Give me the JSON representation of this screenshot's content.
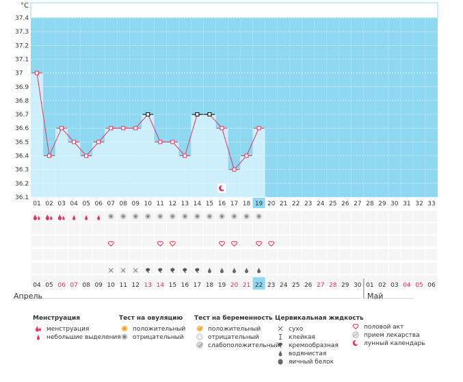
{
  "chart_data": {
    "type": "line",
    "ylabel": "°C",
    "ylim": [
      36.1,
      37.4
    ],
    "yticks": [
      "36.1",
      "36.2",
      "36.3",
      "36.4",
      "36.5",
      "36.6",
      "36.7",
      "36.8",
      "36.9",
      "37",
      "37.1",
      "37.2",
      "37.3",
      "37.4"
    ],
    "cycle_days": [
      "01",
      "02",
      "03",
      "04",
      "05",
      "06",
      "07",
      "08",
      "09",
      "10",
      "11",
      "12",
      "13",
      "14",
      "15",
      "16",
      "17",
      "18",
      "19",
      "20",
      "21",
      "22",
      "23",
      "24",
      "25",
      "26",
      "27",
      "28",
      "29",
      "30",
      "31",
      "32",
      "33"
    ],
    "current_day": "19",
    "temperatures": [
      37.0,
      36.4,
      36.6,
      36.5,
      36.4,
      36.5,
      36.6,
      36.6,
      36.6,
      36.7,
      36.5,
      36.5,
      36.4,
      36.7,
      36.7,
      36.6,
      36.3,
      36.4,
      36.6
    ],
    "square_markers": [
      10,
      14,
      15
    ],
    "moon_day": 16,
    "grid": true,
    "dates": [
      {
        "d": "04",
        "red": false
      },
      {
        "d": "05",
        "red": false
      },
      {
        "d": "06",
        "red": true
      },
      {
        "d": "07",
        "red": true
      },
      {
        "d": "08",
        "red": false
      },
      {
        "d": "09",
        "red": false
      },
      {
        "d": "10",
        "red": false
      },
      {
        "d": "11",
        "red": false
      },
      {
        "d": "12",
        "red": false
      },
      {
        "d": "13",
        "red": true
      },
      {
        "d": "14",
        "red": true
      },
      {
        "d": "15",
        "red": false
      },
      {
        "d": "16",
        "red": false
      },
      {
        "d": "17",
        "red": false
      },
      {
        "d": "18",
        "red": false
      },
      {
        "d": "19",
        "red": false
      },
      {
        "d": "20",
        "red": true
      },
      {
        "d": "21",
        "red": true
      },
      {
        "d": "22",
        "red": false
      },
      {
        "d": "23",
        "red": false
      },
      {
        "d": "24",
        "red": false
      },
      {
        "d": "25",
        "red": false
      },
      {
        "d": "26",
        "red": false
      },
      {
        "d": "27",
        "red": true
      },
      {
        "d": "28",
        "red": true
      },
      {
        "d": "29",
        "red": false
      },
      {
        "d": "30",
        "red": false
      },
      {
        "d": "01",
        "red": false
      },
      {
        "d": "02",
        "red": false
      },
      {
        "d": "03",
        "red": false
      },
      {
        "d": "04",
        "red": true
      },
      {
        "d": "05",
        "red": true
      },
      {
        "d": "06",
        "red": false
      }
    ],
    "today_date_index": 18,
    "month_boundary_index": 27,
    "months": [
      "Апрель",
      "Май"
    ],
    "menstruation": [
      "heavy",
      "heavy",
      "heavy",
      "light",
      "light",
      "light"
    ],
    "ovulation_test_days": [
      7,
      8,
      9,
      10,
      11,
      12,
      13,
      14,
      15,
      16,
      17,
      18,
      19
    ],
    "intercourse_days": [
      7,
      11,
      12,
      16,
      17,
      19,
      20
    ],
    "cervical_fluid": {
      "dry": [
        7,
        8,
        9
      ],
      "creamy": [
        10,
        11,
        12,
        13,
        14
      ],
      "watery": [
        15,
        16,
        17,
        18,
        19
      ]
    }
  },
  "legend": {
    "menstruation": {
      "title": "Менструация",
      "items": [
        "менструация",
        "небольшие выделения"
      ]
    },
    "ovulation": {
      "title": "Тест на овуляцию",
      "items": [
        "положительный",
        "отрицательный"
      ]
    },
    "pregnancy": {
      "title": "Тест на беременность",
      "items": [
        "положительный",
        "отрицательный",
        "слабоположительный"
      ]
    },
    "fluid": {
      "title": "Цервикальная жидкость",
      "items": [
        "сухо",
        "клейкая",
        "кремообразная",
        "водянистая",
        "яичный белок"
      ]
    },
    "other": {
      "items": [
        "половой акт",
        "прием лекарства",
        "лунный календарь"
      ]
    }
  },
  "colors": {
    "plot_bg": "#8fd8f2",
    "bar": "#cdeefb",
    "line": "#e8325a",
    "marker_fill": "#ffffff",
    "today_bg": "#8fd8f2",
    "red_date": "#e8325a"
  }
}
